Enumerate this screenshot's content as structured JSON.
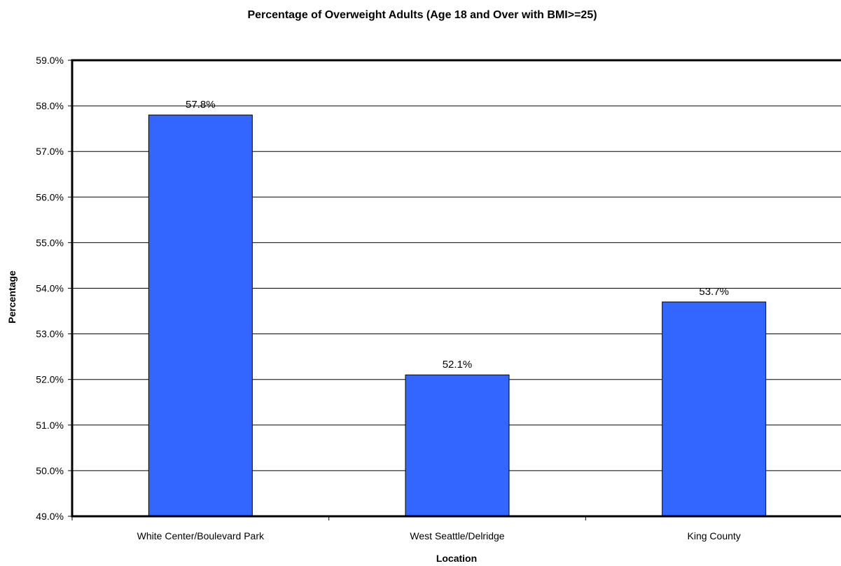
{
  "chart_data": {
    "type": "bar",
    "title": "Percentage of Overweight Adults (Age 18 and Over with BMI>=25)",
    "xlabel": "Location",
    "ylabel": "Percentage",
    "categories": [
      "White Center/Boulevard Park",
      "West Seattle/Delridge",
      "King County"
    ],
    "values": [
      57.8,
      52.1,
      53.7
    ],
    "data_labels": [
      "57.8%",
      "52.1%",
      "53.7%"
    ],
    "ylim": [
      49.0,
      59.0
    ],
    "yticks": [
      49.0,
      50.0,
      51.0,
      52.0,
      53.0,
      54.0,
      55.0,
      56.0,
      57.0,
      58.0,
      59.0
    ],
    "ytick_labels": [
      "49.0%",
      "50.0%",
      "51.0%",
      "52.0%",
      "53.0%",
      "54.0%",
      "55.0%",
      "56.0%",
      "57.0%",
      "58.0%",
      "59.0%"
    ],
    "grid": true,
    "legend": "none",
    "colors": {
      "bar": "#3366FF",
      "bar_edge": "#000000",
      "gridline": "#000000"
    }
  }
}
